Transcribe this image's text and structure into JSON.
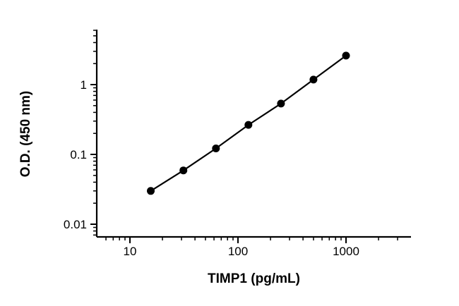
{
  "chart_data": {
    "type": "scatter",
    "title": "",
    "xlabel": "TIMP1 (pg/mL)",
    "ylabel": "O.D. (450 nm)",
    "x_scale": "log",
    "y_scale": "log",
    "xlim": [
      5,
      4000
    ],
    "ylim": [
      0.006,
      7
    ],
    "x_ticks": [
      {
        "value": 10,
        "label": "10"
      },
      {
        "value": 100,
        "label": "100"
      },
      {
        "value": 1000,
        "label": "1000"
      }
    ],
    "y_ticks": [
      {
        "value": 0.01,
        "label": "0.01"
      },
      {
        "value": 0.1,
        "label": "0.1"
      },
      {
        "value": 1,
        "label": "1"
      }
    ],
    "grid": false,
    "legend": "none",
    "series": [
      {
        "x": [
          15.6,
          31.25,
          62.5,
          125,
          250,
          500,
          1000
        ],
        "y": [
          0.03,
          0.059,
          0.122,
          0.265,
          0.535,
          1.18,
          2.6
        ],
        "marker": "circle",
        "line": true,
        "color": "#000000"
      }
    ]
  }
}
